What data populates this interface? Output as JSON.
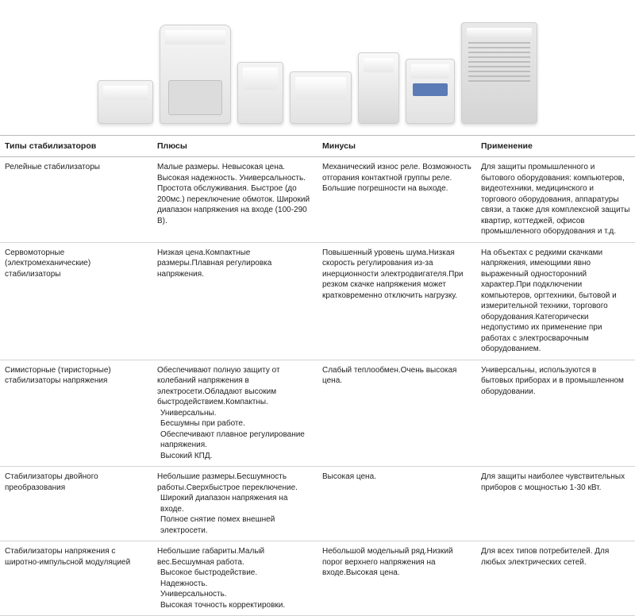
{
  "table": {
    "columns": [
      "Типы стабилизаторов",
      "Плюсы",
      "Минусы",
      "Применение"
    ],
    "rows": [
      {
        "type": "Релейные стабилизаторы",
        "plus": "Малые размеры. Невысокая цена. Высокая надежность. Универсальность. Простота обслуживания. Быстрое (до 200мс.) переключение обмоток. Широкий диапазон напряжения на входе (100-290 В).",
        "minus": "Механический износ реле. Возможность отгорания контактной группы реле. Большие погрешности на выходе.",
        "use": "Для защиты промышленного и бытового оборудования: компьютеров, видеотехники, медицинского и торгового оборудования, аппаратуры связи, а также для комплексной защиты квартир, коттеджей, офисов промышленного оборудования и т.д."
      },
      {
        "type": "Сервомоторные (электромеханические) стабилизаторы",
        "plus": "Низкая цена.Компактные размеры.Плавная регулировка напряжения.",
        "minus": "Повышенный уровень шума.Низкая скорость регулирования из-за инерционности электродвигателя.При резком скачке напряжения может кратковременно отключить нагрузку.",
        "use": "На объектах с редкими скачками напряжения, имеющими явно выраженный односторонний характер.При подключении компьютеров, оргтехники, бытовой и измерительной техники, торгового оборудования.Категорически недопустимо их применение при работах с электросварочным оборудованием."
      },
      {
        "type": "Симисторные (тиристорные) стабилизаторы напряжения",
        "plus": "Обеспечивают полную защиту от колебаний напряжения в электросети.Обладают высоким быстродействием.Компактны.\n Универсальны.\n Бесшумны при работе.\n Обеспечивают плавное регулирование напряжения.\n Высокий КПД.",
        "minus": "Слабый теплообмен.Очень высокая цена.",
        "use": "Универсальны, используются в бытовых приборах и в промышленном оборудовании."
      },
      {
        "type": "Стабилизаторы двойного преобразования",
        "plus": "Небольшие размеры.Бесшумность работы.Сверхбыстрое переключение.\n Широкий диапазон напряжения на входе.\n Полное снятие помех внешней электросети.",
        "minus": "Высокая цена.",
        "use": "Для защиты наиболее чувствительных приборов с мощностью 1-30 кВт."
      },
      {
        "type": "Стабилизаторы напряжения с широтно-импульсной модуляцией",
        "plus": "Небольшие габариты.Малый вес.Бесшумная работа.\n Высокое быстродействие.\n Надежность.\n Универсальность.\n Высокая точность корректировки.",
        "minus": "Небольшой модельный ряд.Низкий порог верхнего напряжения на входе.Высокая цена.",
        "use": "Для всех типов потребителей. Для любых электрических сетей."
      }
    ]
  }
}
